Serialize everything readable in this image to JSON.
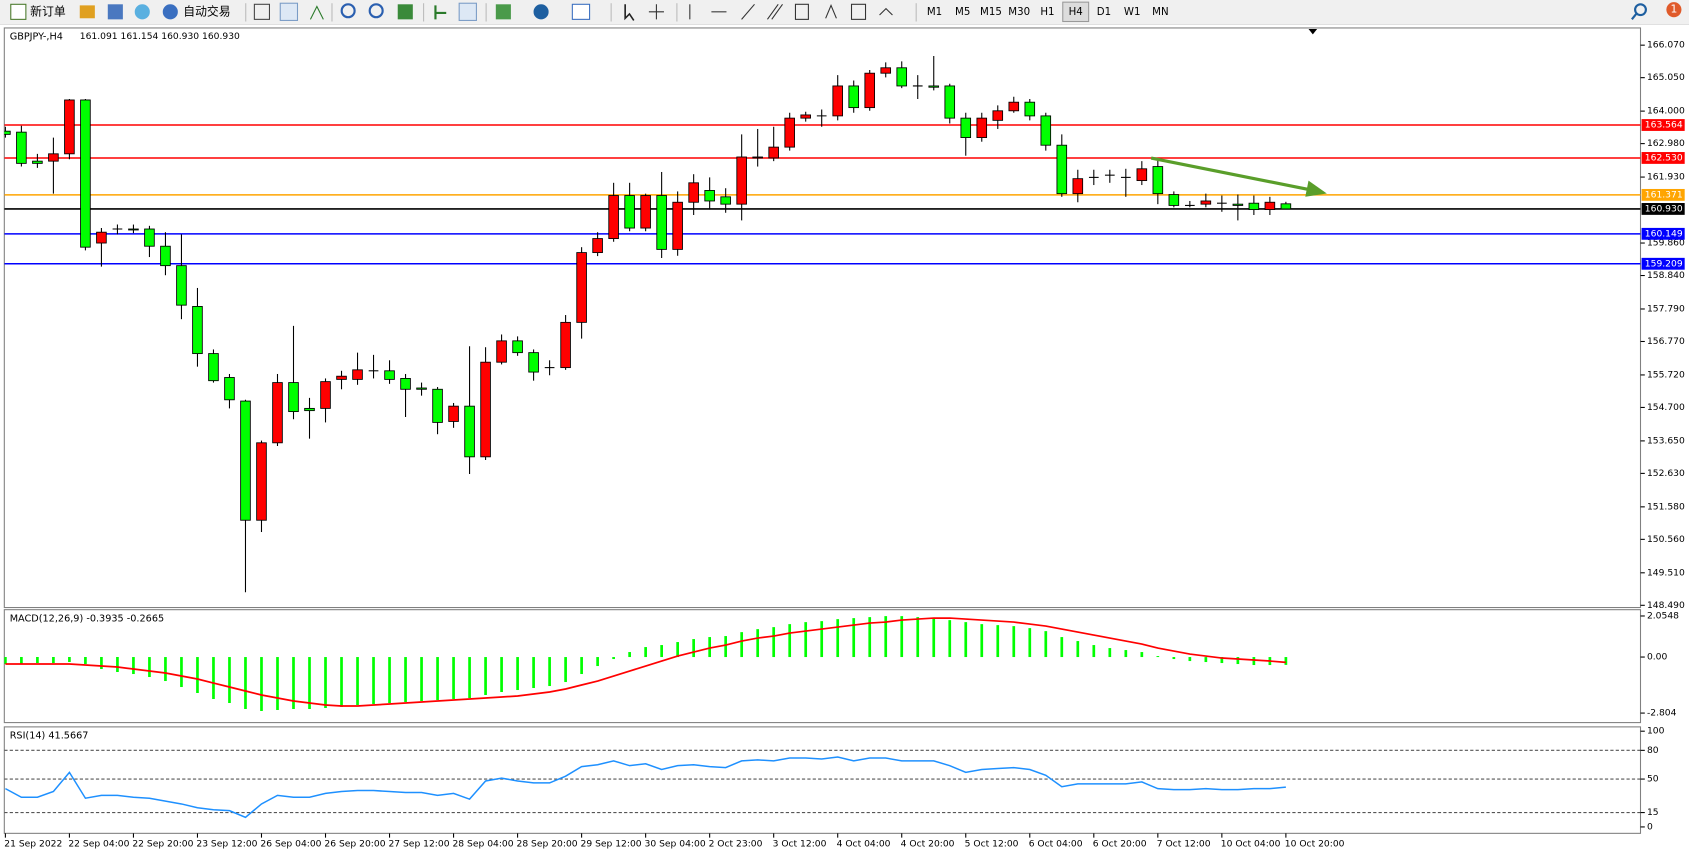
{
  "toolbar": {
    "new_order": "新订单",
    "auto_trading": "自动交易",
    "timeframes": [
      "M1",
      "M5",
      "M15",
      "M30",
      "H1",
      "H4",
      "D1",
      "W1",
      "MN"
    ],
    "active_timeframe": "H4",
    "notifications": "1"
  },
  "chart_data": [
    {
      "type": "candlestick",
      "title": "GBPJPY-,H4",
      "ohlc_label": "161.091 161.154 160.930 160.930",
      "up_color": "#ff0000",
      "down_color": "#00ff00",
      "x": [
        "21 Sep 2022",
        null,
        null,
        null,
        "22 Sep 04:00",
        null,
        null,
        null,
        "22 Sep 20:00",
        null,
        null,
        null,
        "23 Sep 12:00",
        null,
        null,
        null,
        "26 Sep 04:00",
        null,
        null,
        null,
        "26 Sep 20:00",
        null,
        null,
        null,
        "27 Sep 12:00",
        null,
        null,
        null,
        "28 Sep 04:00",
        null,
        null,
        null,
        "28 Sep 20:00",
        null,
        null,
        null,
        "29 Sep 12:00",
        null,
        null,
        null,
        "30 Sep 04:00",
        null,
        null,
        null,
        "2 Oct 23:00",
        null,
        null,
        null,
        "3 Oct 12:00",
        null,
        null,
        null,
        "4 Oct 04:00",
        null,
        null,
        null,
        "4 Oct 20:00",
        null,
        null,
        null,
        "5 Oct 12:00",
        null,
        null,
        null,
        "6 Oct 04:00",
        null,
        null,
        null,
        "6 Oct 20:00",
        null,
        null,
        null,
        "7 Oct 12:00",
        null,
        null,
        null,
        "10 Oct 04:00",
        null,
        null,
        null,
        "10 Oct 20:00"
      ],
      "open": [
        163.37,
        163.34,
        162.43,
        162.43,
        162.66,
        164.35,
        159.86,
        160.3,
        160.3,
        160.3,
        159.76,
        159.15,
        157.87,
        156.39,
        155.64,
        154.9,
        151.16,
        153.59,
        155.48,
        154.67,
        154.67,
        155.58,
        155.58,
        155.85,
        155.85,
        155.61,
        155.31,
        155.27,
        154.26,
        154.74,
        153.15,
        156.12,
        156.79,
        156.42,
        155.95,
        155.95,
        157.37,
        159.56,
        160.0,
        161.35,
        160.33,
        161.35,
        159.66,
        161.14,
        161.51,
        161.31,
        161.08,
        162.53,
        162.53,
        162.87,
        163.78,
        163.85,
        163.85,
        164.79,
        164.11,
        165.19,
        165.36,
        164.79,
        164.79,
        164.79,
        163.78,
        163.17,
        163.71,
        164.01,
        164.28,
        163.85,
        162.93,
        161.41,
        161.92,
        161.99,
        161.92,
        161.82,
        162.26,
        161.38,
        161.04,
        161.08,
        161.11,
        161.08,
        161.11,
        160.91,
        161.091
      ],
      "high": [
        163.51,
        163.54,
        162.66,
        163.17,
        164.38,
        164.38,
        160.33,
        160.44,
        160.44,
        160.4,
        160.2,
        160.13,
        158.45,
        156.52,
        155.75,
        154.94,
        153.66,
        155.75,
        157.26,
        155.0,
        155.61,
        155.85,
        156.42,
        156.35,
        156.18,
        155.75,
        155.48,
        155.34,
        154.84,
        156.62,
        156.59,
        156.99,
        156.93,
        156.52,
        156.18,
        157.6,
        159.73,
        160.2,
        161.75,
        161.75,
        161.41,
        162.09,
        161.48,
        162.02,
        161.92,
        161.58,
        163.27,
        163.44,
        163.51,
        163.95,
        163.98,
        164.05,
        165.13,
        164.96,
        165.29,
        165.53,
        165.56,
        165.13,
        165.73,
        164.86,
        163.95,
        163.95,
        164.18,
        164.45,
        164.38,
        163.95,
        163.27,
        162.16,
        162.16,
        162.16,
        162.19,
        162.43,
        162.53,
        161.48,
        161.18,
        161.41,
        161.35,
        161.38,
        161.35,
        161.31,
        161.154
      ],
      "low": [
        163.17,
        162.26,
        162.22,
        161.41,
        162.49,
        159.63,
        159.12,
        160.13,
        160.17,
        159.42,
        158.85,
        157.47,
        155.98,
        155.48,
        154.67,
        148.9,
        150.79,
        153.49,
        154.33,
        153.72,
        154.23,
        155.27,
        155.41,
        155.61,
        155.44,
        154.4,
        155.07,
        153.86,
        154.06,
        152.61,
        153.05,
        156.05,
        156.32,
        155.54,
        155.71,
        155.88,
        156.86,
        159.45,
        159.9,
        160.23,
        160.23,
        159.39,
        159.46,
        160.74,
        160.91,
        160.81,
        160.57,
        162.26,
        162.43,
        162.76,
        163.67,
        163.51,
        163.71,
        163.95,
        164.01,
        165.06,
        164.72,
        164.38,
        164.65,
        163.61,
        162.6,
        163.04,
        163.44,
        163.95,
        163.71,
        162.76,
        161.31,
        161.14,
        161.68,
        161.75,
        161.31,
        161.68,
        161.08,
        160.98,
        160.98,
        160.98,
        160.84,
        160.57,
        160.74,
        160.74,
        160.93
      ],
      "close": [
        163.27,
        162.36,
        162.36,
        162.66,
        164.35,
        159.73,
        160.2,
        160.3,
        160.27,
        159.76,
        159.15,
        157.91,
        156.39,
        155.54,
        154.94,
        151.16,
        153.59,
        155.48,
        154.57,
        154.6,
        155.51,
        155.68,
        155.88,
        155.85,
        155.58,
        155.27,
        155.27,
        154.23,
        154.74,
        153.15,
        156.12,
        156.79,
        156.42,
        155.81,
        155.95,
        157.37,
        159.56,
        160.0,
        161.35,
        160.33,
        161.35,
        159.66,
        161.14,
        161.75,
        161.18,
        161.08,
        162.56,
        162.56,
        162.87,
        163.78,
        163.88,
        163.85,
        164.79,
        164.11,
        165.19,
        165.36,
        164.79,
        164.79,
        164.75,
        163.78,
        163.17,
        163.78,
        164.01,
        164.28,
        163.85,
        162.93,
        161.41,
        161.88,
        161.92,
        161.99,
        161.92,
        162.19,
        161.41,
        161.04,
        161.04,
        161.18,
        161.11,
        161.04,
        160.91,
        161.14,
        160.93
      ],
      "ylim": [
        148.42,
        166.61
      ],
      "yticks": [
        {
          "value": 166.07,
          "label": "166.070"
        },
        {
          "value": 165.05,
          "label": "165.050"
        },
        {
          "value": 164,
          "label": "164.000"
        },
        {
          "value": 162.98,
          "label": "162.980"
        },
        {
          "value": 161.93,
          "label": "161.930"
        },
        {
          "value": 159.86,
          "label": "159.860"
        },
        {
          "value": 158.84,
          "label": "158.840"
        },
        {
          "value": 157.79,
          "label": "157.790"
        },
        {
          "value": 156.77,
          "label": "156.770"
        },
        {
          "value": 155.72,
          "label": "155.720"
        },
        {
          "value": 154.7,
          "label": "154.700"
        },
        {
          "value": 153.65,
          "label": "153.650"
        },
        {
          "value": 152.63,
          "label": "152.630"
        },
        {
          "value": 151.58,
          "label": "151.580"
        },
        {
          "value": 150.56,
          "label": "150.560"
        },
        {
          "value": 149.51,
          "label": "149.510"
        },
        {
          "value": 148.49,
          "label": "148.490"
        }
      ],
      "levels": [
        {
          "value": 163.564,
          "color": "#ff0000"
        },
        {
          "value": 162.53,
          "label": "162.530",
          "color": "#ff0000"
        },
        {
          "value": 161.371,
          "color": "#ffa500"
        },
        {
          "value": 160.93,
          "label": "160.930",
          "color": "#000000"
        },
        {
          "value": 160.149,
          "color": "#0000ff"
        },
        {
          "value": 159.209,
          "color": "#0000ff"
        }
      ]
    },
    {
      "type": "macd",
      "title": "MACD(12,26,9) -0.3935 -0.2665",
      "histogram": {
        "color": "#00ff00",
        "values": [
          -0.35,
          -0.35,
          -0.3,
          -0.3,
          -0.25,
          -0.35,
          -0.6,
          -0.75,
          -0.85,
          -1.0,
          -1.2,
          -1.5,
          -1.8,
          -2.1,
          -2.3,
          -2.6,
          -2.7,
          -2.65,
          -2.6,
          -2.6,
          -2.55,
          -2.5,
          -2.4,
          -2.35,
          -2.3,
          -2.25,
          -2.2,
          -2.15,
          -2.1,
          -2.05,
          -1.9,
          -1.75,
          -1.65,
          -1.55,
          -1.45,
          -1.25,
          -0.85,
          -0.45,
          -0.1,
          0.25,
          0.5,
          0.6,
          0.75,
          0.9,
          1.0,
          1.05,
          1.25,
          1.4,
          1.5,
          1.65,
          1.75,
          1.8,
          1.9,
          1.95,
          2.0,
          2.05,
          2.05,
          2.0,
          1.95,
          1.85,
          1.75,
          1.65,
          1.6,
          1.55,
          1.45,
          1.3,
          1.0,
          0.8,
          0.6,
          0.45,
          0.35,
          0.25,
          0.05,
          -0.1,
          -0.2,
          -0.25,
          -0.3,
          -0.35,
          -0.4,
          -0.4,
          -0.3935
        ]
      },
      "signal": {
        "color": "#ff0000",
        "values": [
          -0.35,
          -0.35,
          -0.35,
          -0.35,
          -0.35,
          -0.4,
          -0.45,
          -0.5,
          -0.6,
          -0.7,
          -0.8,
          -0.95,
          -1.1,
          -1.3,
          -1.5,
          -1.7,
          -1.9,
          -2.05,
          -2.2,
          -2.3,
          -2.4,
          -2.45,
          -2.45,
          -2.4,
          -2.35,
          -2.3,
          -2.25,
          -2.2,
          -2.15,
          -2.1,
          -2.05,
          -2.0,
          -1.95,
          -1.85,
          -1.75,
          -1.6,
          -1.4,
          -1.2,
          -0.95,
          -0.7,
          -0.45,
          -0.2,
          0.05,
          0.25,
          0.45,
          0.6,
          0.8,
          0.95,
          1.05,
          1.2,
          1.3,
          1.4,
          1.5,
          1.6,
          1.7,
          1.75,
          1.85,
          1.9,
          1.95,
          1.95,
          1.9,
          1.85,
          1.8,
          1.75,
          1.65,
          1.55,
          1.4,
          1.25,
          1.1,
          0.95,
          0.8,
          0.65,
          0.45,
          0.3,
          0.15,
          0.05,
          -0.05,
          -0.1,
          -0.15,
          -0.2,
          -0.2665
        ]
      },
      "ylim": [
        -3.28,
        2.37
      ],
      "yticks": [
        2.0548,
        {
          "value": 0,
          "label": "0.00"
        },
        -2.804
      ]
    },
    {
      "type": "line",
      "title": "RSI(14) 41.5667",
      "color": "#1e90ff",
      "values": [
        40,
        31,
        31,
        37,
        57,
        30,
        33,
        33,
        31,
        30,
        27,
        24,
        20,
        18,
        17,
        10,
        24,
        33,
        31,
        31,
        35,
        37,
        38,
        38,
        37,
        36,
        36,
        33,
        35,
        29,
        48,
        51,
        48,
        46,
        46,
        53,
        63,
        65,
        69,
        64,
        66,
        60,
        64,
        65,
        63,
        62,
        69,
        70,
        69,
        72,
        72,
        71,
        73,
        69,
        72,
        72,
        69,
        69,
        69,
        64,
        57,
        60,
        61,
        62,
        60,
        54,
        42,
        45,
        45,
        45,
        45,
        47,
        40,
        39,
        39,
        40,
        39,
        39,
        40,
        40,
        41.5667
      ],
      "ylim": [
        -6.7,
        104.5
      ],
      "yticks": [
        0,
        15,
        50,
        80,
        100
      ],
      "levels": [
        15,
        50,
        80
      ]
    }
  ]
}
